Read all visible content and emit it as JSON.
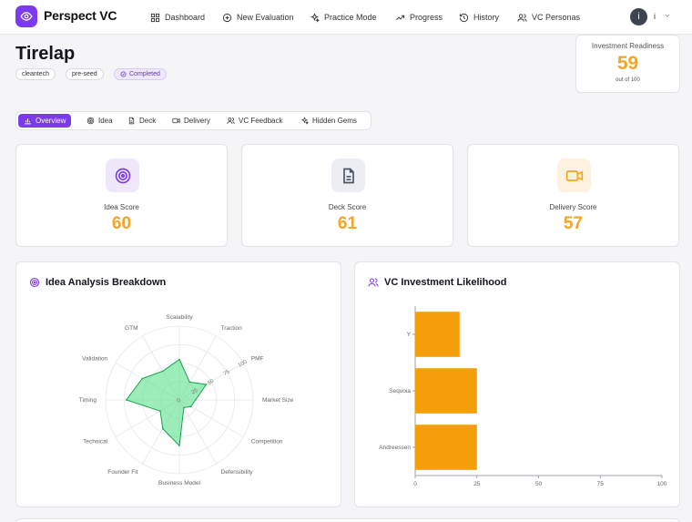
{
  "app": {
    "brand": "Perspect VC",
    "logo_icon": "eye-icon",
    "accent_color": "#7c3aed",
    "score_color": "#f5a524"
  },
  "nav": {
    "items": [
      {
        "label": "Dashboard",
        "icon": "grid-icon"
      },
      {
        "label": "New Evaluation",
        "icon": "plus-circle-icon"
      },
      {
        "label": "Practice Mode",
        "icon": "sparkles-icon"
      },
      {
        "label": "Progress",
        "icon": "trending-up-icon"
      },
      {
        "label": "History",
        "icon": "history-icon"
      },
      {
        "label": "VC Personas",
        "icon": "users-icon"
      }
    ],
    "user_avatar": "i",
    "user_name": "i"
  },
  "startup": {
    "name": "Tirelap",
    "tags": [
      "cleantech",
      "pre-seed"
    ],
    "status": "Completed"
  },
  "readiness": {
    "label": "Investment Readiness",
    "value": "59",
    "sub": "out of 100"
  },
  "tabs": [
    {
      "label": "Overview",
      "icon": "bar-chart-icon",
      "active": true
    },
    {
      "label": "Idea",
      "icon": "target-icon",
      "active": false
    },
    {
      "label": "Deck",
      "icon": "document-icon",
      "active": false
    },
    {
      "label": "Delivery",
      "icon": "video-icon",
      "active": false
    },
    {
      "label": "VC Feedback",
      "icon": "users-icon",
      "active": false
    },
    {
      "label": "Hidden Gems",
      "icon": "sparkles-icon",
      "active": false
    }
  ],
  "scores": [
    {
      "label": "Idea Score",
      "value": "60",
      "icon": "target-icon",
      "bg": "#efe8fb",
      "color": "#7c3aed"
    },
    {
      "label": "Deck Score",
      "value": "61",
      "icon": "document-icon",
      "bg": "#eceef3",
      "color": "#4b5563"
    },
    {
      "label": "Delivery Score",
      "value": "57",
      "icon": "video-icon",
      "bg": "#fdf1df",
      "color": "#f5a524"
    }
  ],
  "panels": {
    "radar_title": "Idea Analysis Breakdown",
    "radar_icon": "target-icon",
    "bar_title": "VC Investment Likelihood",
    "bar_icon": "users-icon"
  },
  "chart_data": [
    {
      "type": "radar",
      "title": "Idea Analysis Breakdown",
      "categories": [
        "Scalability",
        "Traction",
        "PMF",
        "Market Size",
        "Competition",
        "Defensibility",
        "Business Model",
        "Founder Fit",
        "Technical",
        "Timing",
        "Validation",
        "GTM"
      ],
      "values": [
        55,
        28,
        42,
        22,
        18,
        12,
        62,
        45,
        30,
        72,
        58,
        45
      ],
      "radial_ticks": [
        "0",
        "25",
        "50",
        "75",
        "100"
      ],
      "rlim": [
        0,
        100
      ],
      "fill_color": "#4ade80",
      "stroke_color": "#16a34a"
    },
    {
      "type": "bar",
      "orientation": "horizontal",
      "title": "VC Investment Likelihood",
      "categories": [
        "Y",
        "Sequoia",
        "Andreessen"
      ],
      "values": [
        18,
        25,
        25
      ],
      "xlim": [
        0,
        100
      ],
      "x_ticks": [
        "0",
        "25",
        "50",
        "75",
        "100"
      ],
      "bar_color": "#f59e0b"
    }
  ]
}
